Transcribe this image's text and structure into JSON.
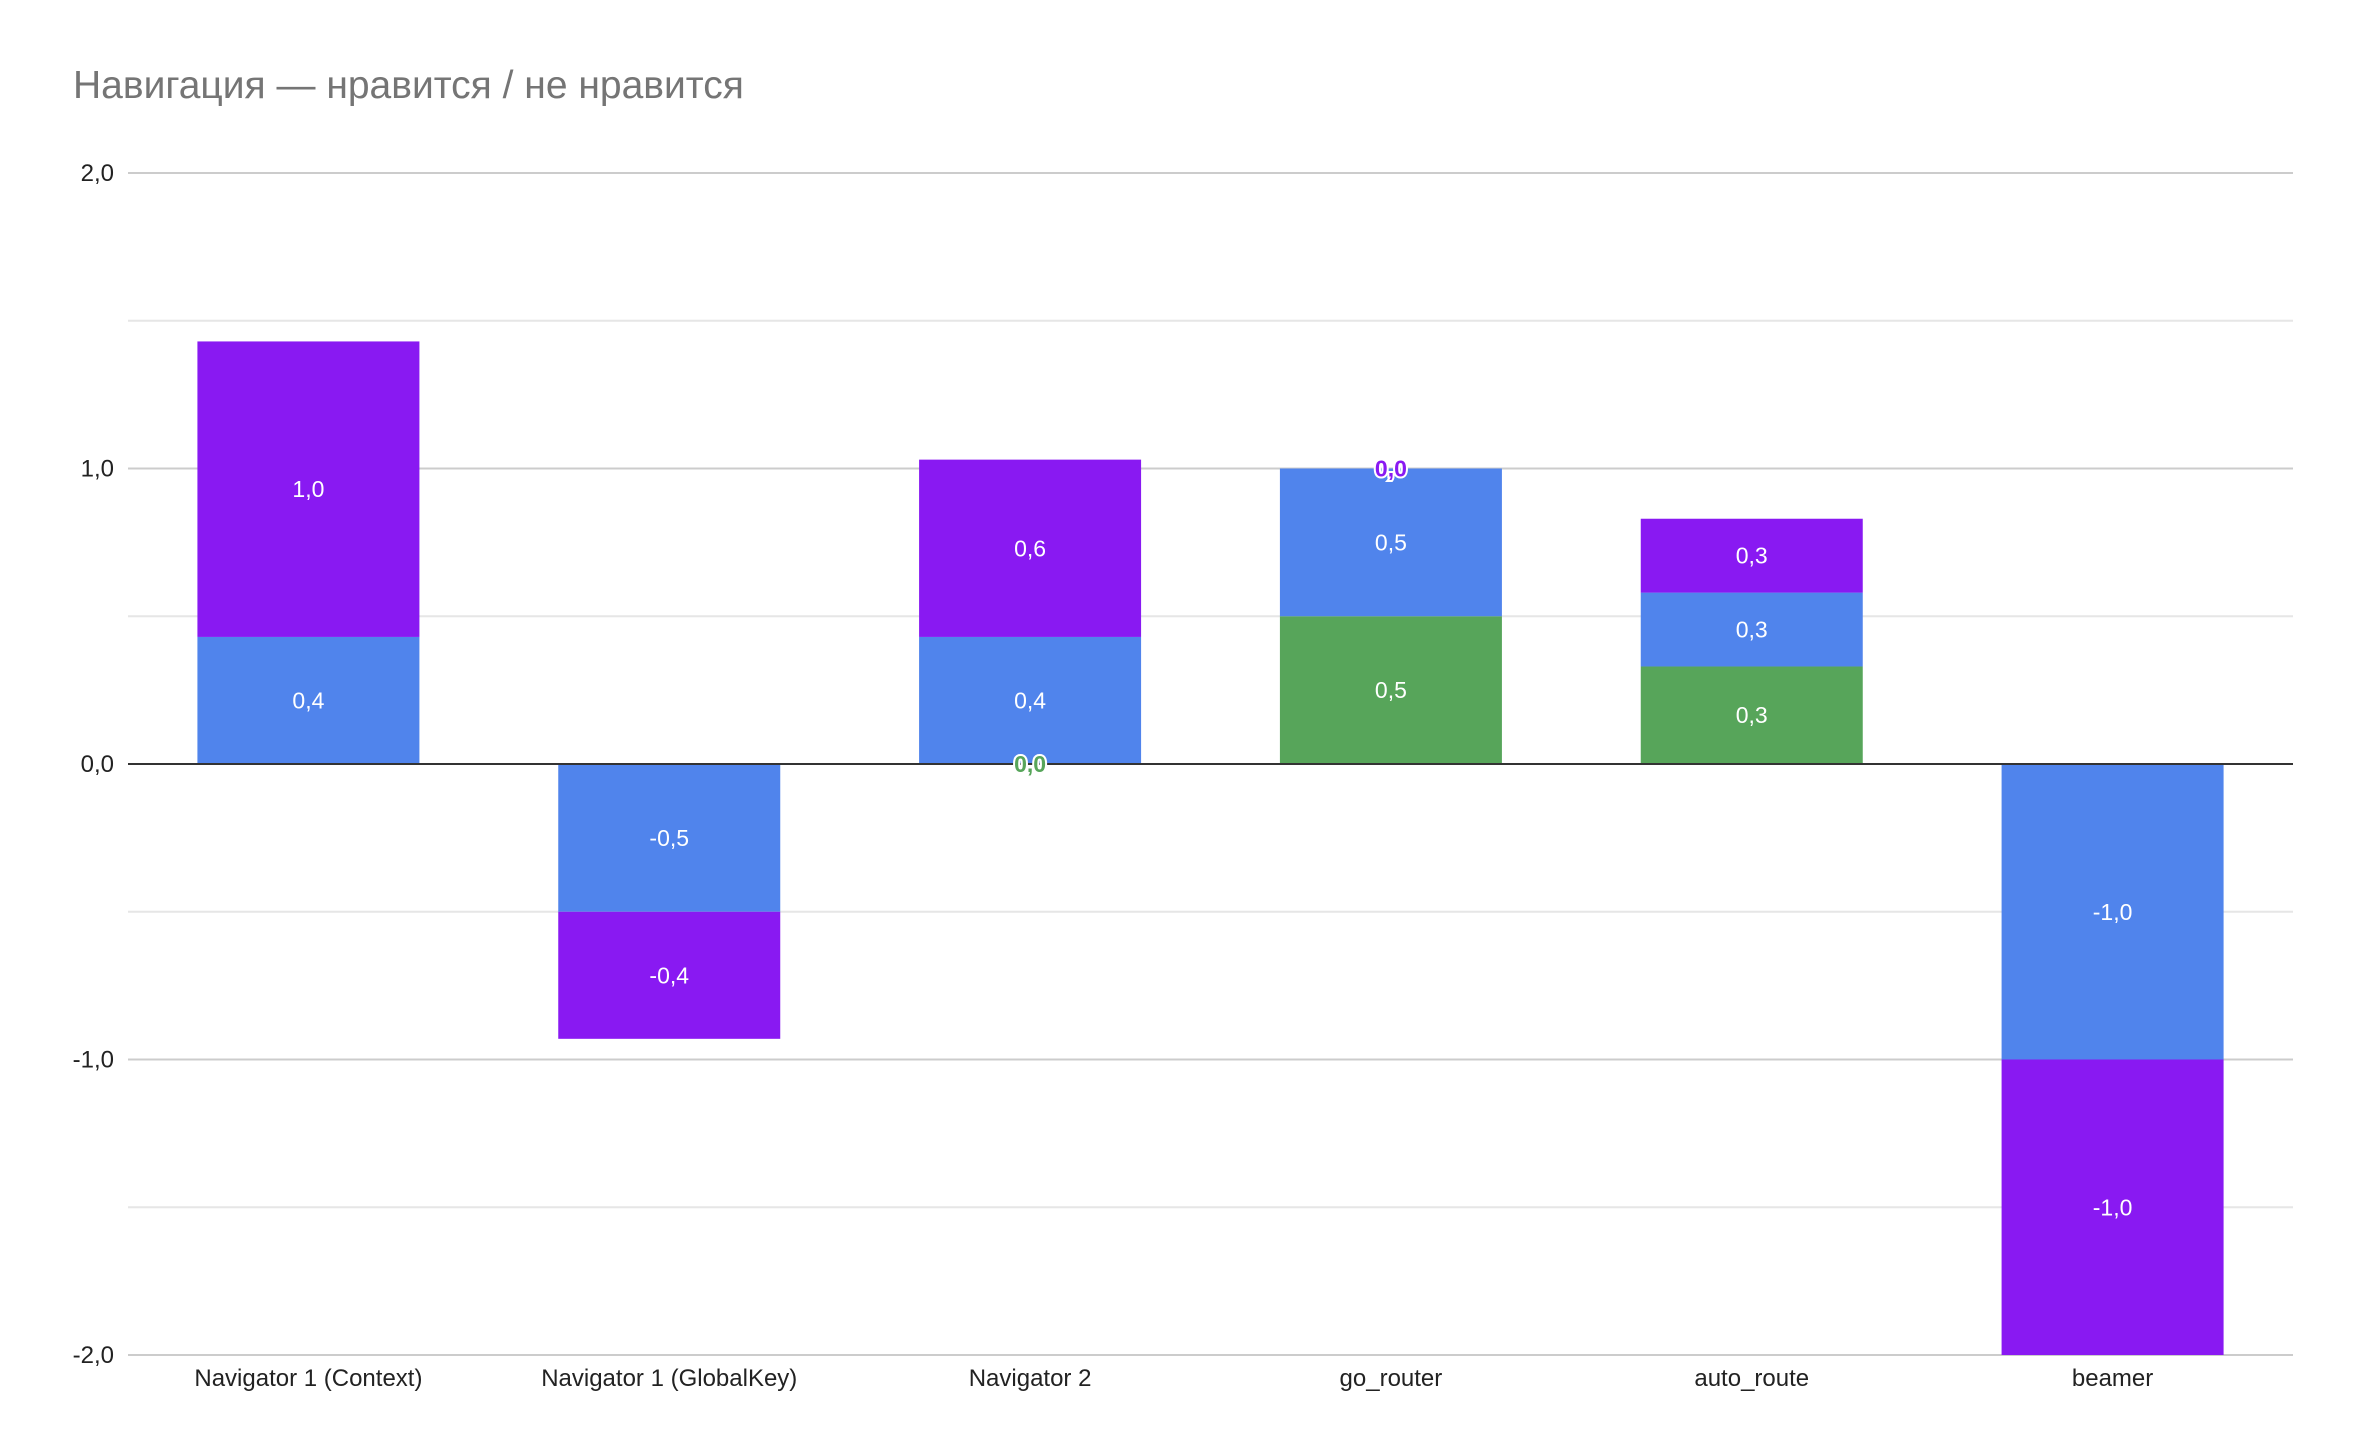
{
  "chart_data": {
    "type": "bar",
    "stacked": true,
    "title": "Навигация — нравится / не нравится",
    "categories": [
      "Navigator 1 (Context)",
      "Navigator 1 (GlobalKey)",
      "Navigator 2",
      "go_router",
      "auto_route",
      "beamer"
    ],
    "ylim": [
      -2,
      2
    ],
    "yticks": [
      2.0,
      1.0,
      0.0,
      -1.0,
      -2.0
    ],
    "ytick_labels": [
      "2,0",
      "1,0",
      "0,0",
      "-1,0",
      "-2,0"
    ],
    "grid": true,
    "series": [
      {
        "color": "#57a55a",
        "values": [
          0,
          0,
          0,
          0.5,
          0.33,
          0
        ],
        "labels": [
          "",
          "",
          "0,0",
          "0,5",
          "0,3",
          ""
        ]
      },
      {
        "color": "#5084ec",
        "values": [
          0.43,
          -0.5,
          0.43,
          0.5,
          0.25,
          -1.0
        ],
        "labels": [
          "0,4",
          "-0,5",
          "0,4",
          "0,5",
          "0,3",
          "-1,0"
        ]
      },
      {
        "color": "#8919f2",
        "values": [
          1.0,
          -0.43,
          0.6,
          0,
          0.25,
          -1.0
        ],
        "labels": [
          "1,0",
          "-0,4",
          "0,6",
          "0,0",
          "0,3",
          "-1,0"
        ]
      }
    ]
  }
}
